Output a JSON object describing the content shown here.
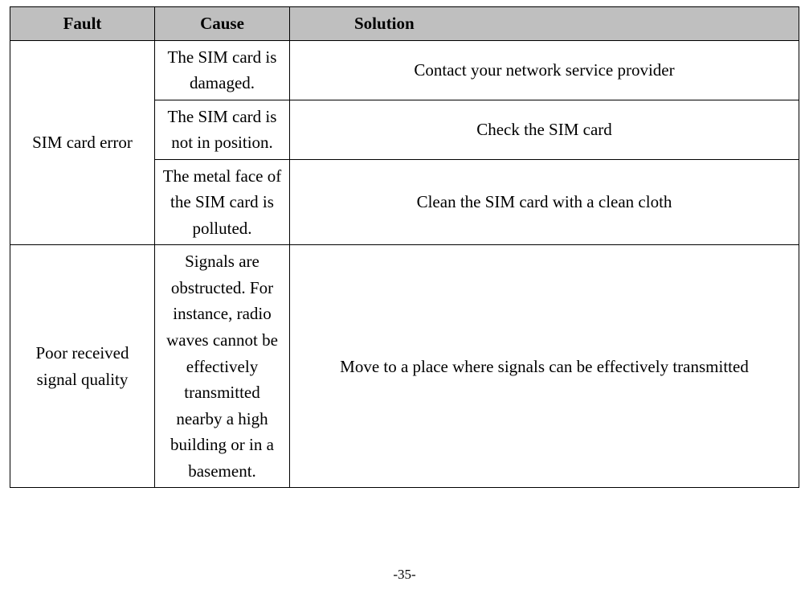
{
  "headers": {
    "fault": "Fault",
    "cause": "Cause",
    "solution": "Solution"
  },
  "rows": [
    {
      "fault": "SIM card error",
      "faultRowspan": 3,
      "cause": "The SIM card is damaged.",
      "solution": "Contact your network service provider"
    },
    {
      "cause": "The SIM card is not in position.",
      "solution": "Check the SIM card"
    },
    {
      "cause": "The metal face of the SIM card is polluted.",
      "solution": "Clean the SIM card with a clean cloth"
    },
    {
      "fault": "Poor received signal quality",
      "faultRowspan": 1,
      "cause": "Signals are obstructed. For instance, radio waves cannot be effectively transmitted nearby a high building or in a basement.",
      "solution": "Move to a place where signals can be effectively transmitted"
    }
  ],
  "pageNumber": "-35-",
  "colors": {
    "headerBg": "#bfbfbf",
    "border": "#000000",
    "background": "#ffffff",
    "text": "#000000"
  },
  "typography": {
    "fontFamily": "Times New Roman",
    "cellFontSize": 21,
    "pageNumFontSize": 17
  },
  "columnWidths": {
    "fault": 180,
    "cause": 168
  }
}
